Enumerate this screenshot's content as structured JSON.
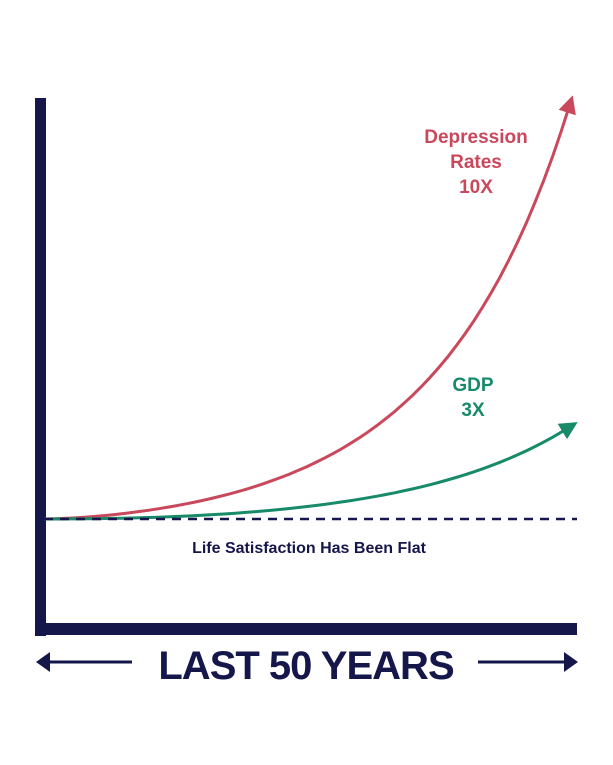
{
  "chart_data": {
    "type": "line",
    "title": "",
    "xlabel": "LAST 50 YEARS",
    "ylabel": "",
    "x_range_years": [
      0,
      50
    ],
    "grid": false,
    "series": [
      {
        "name": "Depression Rates",
        "label_lines": [
          "Depression",
          "Rates",
          "10X"
        ],
        "start": 1,
        "end": 10,
        "color": "#c9485b",
        "style": "solid-arrow"
      },
      {
        "name": "GDP",
        "label_lines": [
          "GDP",
          "3X"
        ],
        "start": 1,
        "end": 3,
        "color": "#178a68",
        "style": "solid-arrow"
      },
      {
        "name": "Life Satisfaction",
        "label": "Life Satisfaction Has Been Flat",
        "start": 1,
        "end": 1,
        "color": "#15174a",
        "style": "dashed"
      }
    ]
  },
  "colors": {
    "axis": "#15174a",
    "background": "#ffffff"
  }
}
